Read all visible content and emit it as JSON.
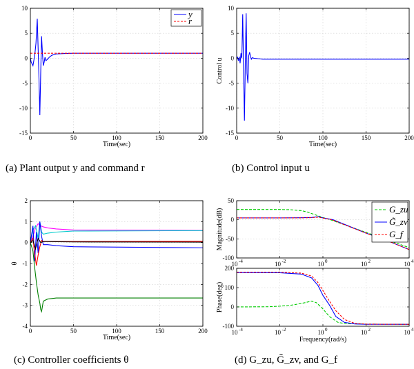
{
  "captions": {
    "a": "(a)  Plant output y and command r",
    "b": "(b)  Control input u",
    "c": "(c)  Controller coefficients θ",
    "d": "(d)  G_zu, G̃_zv, and G_f"
  },
  "chart_data": [
    {
      "id": "a",
      "type": "line",
      "xlabel": "Time(sec)",
      "ylabel": "",
      "xlim": [
        0,
        200
      ],
      "ylim": [
        -15,
        10
      ],
      "grid": true,
      "xticks": [
        0,
        50,
        100,
        150,
        200
      ],
      "yticks": [
        -15,
        -10,
        -5,
        0,
        5,
        10
      ],
      "legend": "top-right",
      "series": [
        {
          "name": "y",
          "color": "#0000ff",
          "dash": "",
          "x": [
            0,
            1,
            3,
            5,
            6.5,
            8,
            9,
            10,
            11,
            12,
            13,
            14,
            15,
            16,
            17,
            18,
            20,
            22,
            25,
            30,
            40,
            50,
            200
          ],
          "y": [
            0,
            -0.8,
            -1.5,
            0.5,
            3,
            7.9,
            2,
            -4,
            -11.4,
            -3,
            4.4,
            1,
            -1.5,
            -0.8,
            0.2,
            -0.5,
            -0.2,
            0.2,
            0.6,
            0.85,
            0.95,
            1,
            1
          ]
        },
        {
          "name": "r",
          "color": "#ff0000",
          "dash": "3,2",
          "x": [
            0,
            200
          ],
          "y": [
            1,
            1
          ]
        }
      ]
    },
    {
      "id": "b",
      "type": "line",
      "xlabel": "Time(sec)",
      "ylabel": "Control u",
      "xlim": [
        0,
        200
      ],
      "ylim": [
        -15,
        10
      ],
      "grid": true,
      "xticks": [
        0,
        50,
        100,
        150,
        200
      ],
      "yticks": [
        -15,
        -10,
        -5,
        0,
        5,
        10
      ],
      "series": [
        {
          "name": "",
          "color": "#0000ff",
          "dash": "",
          "x": [
            0,
            1,
            2,
            3,
            4,
            5,
            6,
            7,
            8,
            9,
            10,
            11,
            12,
            13,
            14,
            15,
            16,
            17,
            18,
            20,
            25,
            30,
            50,
            200
          ],
          "y": [
            0,
            0.2,
            -0.5,
            0.3,
            -1,
            1,
            0,
            8.8,
            -2,
            -12.5,
            -1,
            9,
            -3,
            -5,
            0.5,
            1.2,
            0.4,
            -0.2,
            0.1,
            0,
            -0.1,
            -0.2,
            -0.2,
            -0.2
          ]
        }
      ]
    },
    {
      "id": "c",
      "type": "line",
      "xlabel": "Time(sec)",
      "ylabel": "θ",
      "xlim": [
        0,
        200
      ],
      "ylim": [
        -4,
        2
      ],
      "grid": true,
      "xticks": [
        0,
        50,
        100,
        150,
        200
      ],
      "yticks": [
        -4,
        -3,
        -2,
        -1,
        0,
        1,
        2
      ],
      "series": [
        {
          "name": "",
          "color": "#ff00ff",
          "dash": "",
          "x": [
            0,
            3,
            6,
            9,
            12,
            15,
            20,
            30,
            50,
            200
          ],
          "y": [
            0,
            0.3,
            0.7,
            0.9,
            0.8,
            0.75,
            0.7,
            0.65,
            0.6,
            0.58
          ]
        },
        {
          "name": "",
          "color": "#00cccc",
          "dash": "",
          "x": [
            0,
            3,
            6,
            9,
            11,
            13,
            15,
            20,
            30,
            50,
            200
          ],
          "y": [
            0,
            0.6,
            0.8,
            0.2,
            1.0,
            0.5,
            0.4,
            0.45,
            0.5,
            0.55,
            0.57
          ]
        },
        {
          "name": "",
          "color": "#0000ff",
          "dash": "",
          "x": [
            0,
            3,
            5,
            7,
            9,
            11,
            13,
            15,
            20,
            30,
            50,
            200
          ],
          "y": [
            0,
            0.8,
            -0.9,
            0.5,
            -0.5,
            1.0,
            0.3,
            -0.1,
            -0.1,
            -0.15,
            -0.2,
            -0.25
          ]
        },
        {
          "name": "",
          "color": "#ff0000",
          "dash": "",
          "x": [
            0,
            3,
            5,
            7,
            9,
            11,
            13,
            15,
            20,
            30,
            50,
            200
          ],
          "y": [
            0,
            0.2,
            -0.5,
            -1.1,
            -0.6,
            -0.2,
            0.1,
            0.05,
            0.05,
            0.05,
            0.05,
            0.06
          ]
        },
        {
          "name": "",
          "color": "#000000",
          "dash": "",
          "x": [
            0,
            3,
            6,
            9,
            12,
            15,
            20,
            30,
            50,
            200
          ],
          "y": [
            0,
            0.1,
            -0.3,
            0.2,
            0,
            0.05,
            0.05,
            0.04,
            0.03,
            0.02
          ]
        },
        {
          "name": "",
          "color": "#007f00",
          "dash": "",
          "x": [
            0,
            3,
            5,
            7,
            9,
            11,
            12,
            13,
            15,
            20,
            30,
            50,
            200
          ],
          "y": [
            0,
            -0.4,
            -1.2,
            -1.9,
            -2.5,
            -2.9,
            -3.2,
            -3.3,
            -2.8,
            -2.7,
            -2.65,
            -2.65,
            -2.65
          ]
        }
      ]
    },
    {
      "id": "d-mag",
      "type": "line",
      "xlabel": "",
      "ylabel": "Magnitude(dB)",
      "xscale": "log",
      "xlim": [
        0.0001,
        10000
      ],
      "ylim": [
        -100,
        50
      ],
      "grid": true,
      "xticks": [
        0.0001,
        0.01,
        1,
        100,
        10000
      ],
      "xticklabels": [
        "-4",
        "-2",
        "0",
        "2",
        "4"
      ],
      "yticks": [
        -100,
        -50,
        0,
        50
      ],
      "legend": "top-right",
      "series": [
        {
          "name": "G_zu",
          "color": "#00cc00",
          "dash": "4,2",
          "x": [
            0.0001,
            0.001,
            0.01,
            0.03,
            0.1,
            0.2,
            0.5,
            1,
            2,
            5,
            10,
            100,
            1000,
            10000
          ],
          "y": [
            27,
            27,
            27,
            26.5,
            24,
            20,
            12,
            6,
            1,
            -7,
            -13,
            -33,
            -53,
            -73
          ]
        },
        {
          "name": "G̃_zv",
          "color": "#0000ff",
          "dash": "",
          "x": [
            0.0001,
            0.01,
            0.1,
            0.3,
            0.6,
            1,
            2,
            3,
            10,
            100,
            1000,
            10000
          ],
          "y": [
            5,
            5,
            5.3,
            6,
            8,
            5,
            2,
            0,
            -12,
            -35,
            -55,
            -78
          ]
        },
        {
          "name": "G_f",
          "color": "#ff0000",
          "dash": "3,2",
          "x": [
            0.0001,
            0.01,
            0.1,
            0.3,
            0.6,
            1,
            2,
            3,
            10,
            100,
            1000,
            10000
          ],
          "y": [
            5,
            5,
            5,
            5.5,
            7,
            4.5,
            1.5,
            -1,
            -13,
            -35,
            -55,
            -78
          ]
        }
      ]
    },
    {
      "id": "d-phase",
      "type": "line",
      "xlabel": "Frequency(rad/s)",
      "ylabel": "Phase(deg)",
      "xscale": "log",
      "xlim": [
        0.0001,
        10000
      ],
      "ylim": [
        -100,
        200
      ],
      "grid": true,
      "xticks": [
        0.0001,
        0.01,
        1,
        100,
        10000
      ],
      "xticklabels": [
        "-4",
        "-2",
        "0",
        "2",
        "4"
      ],
      "yticks": [
        -100,
        0,
        100,
        200
      ],
      "series": [
        {
          "name": "G_zu",
          "color": "#00cc00",
          "dash": "4,2",
          "x": [
            0.0001,
            0.003,
            0.01,
            0.03,
            0.1,
            0.3,
            0.5,
            1,
            2,
            5,
            10,
            100,
            10000
          ],
          "y": [
            0,
            1,
            4,
            8,
            18,
            30,
            22,
            -10,
            -50,
            -80,
            -86,
            -89,
            -90
          ]
        },
        {
          "name": "G̃_zv",
          "color": "#0000ff",
          "dash": "",
          "x": [
            0.0001,
            0.01,
            0.1,
            0.3,
            0.6,
            1,
            2,
            4,
            10,
            30,
            100,
            10000
          ],
          "y": [
            178,
            177,
            170,
            150,
            110,
            60,
            10,
            -50,
            -80,
            -88,
            -90,
            -90
          ]
        },
        {
          "name": "G_f",
          "color": "#ff0000",
          "dash": "3,2",
          "x": [
            0.0001,
            0.01,
            0.1,
            0.3,
            0.6,
            1,
            2,
            4,
            10,
            30,
            100,
            10000
          ],
          "y": [
            180,
            180,
            175,
            160,
            125,
            85,
            30,
            -20,
            -65,
            -85,
            -89,
            -90
          ]
        }
      ]
    }
  ]
}
